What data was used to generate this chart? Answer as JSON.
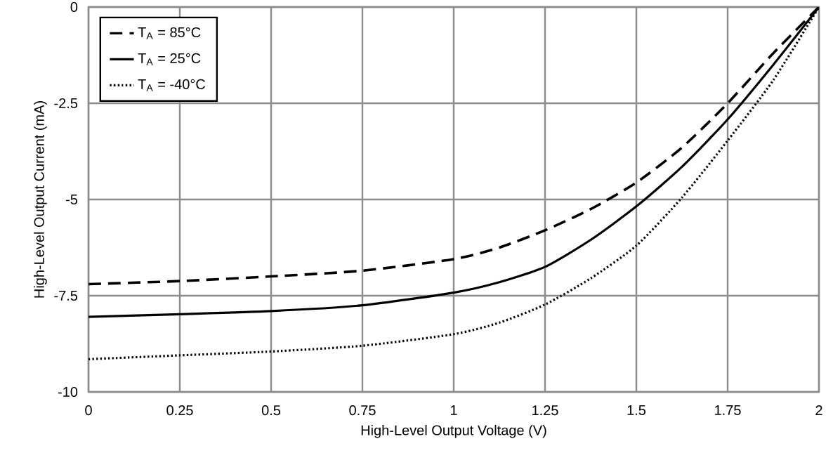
{
  "chart_data": {
    "type": "line",
    "xlabel": "High-Level Output Voltage (V)",
    "ylabel": "High-Level Output Current (mA)",
    "x": [
      0,
      0.25,
      0.5,
      0.75,
      1.0,
      1.125,
      1.25,
      1.375,
      1.5,
      1.625,
      1.75,
      1.875,
      2
    ],
    "series": [
      {
        "name": "T$_{A}$ = 85°C",
        "color": "#000000",
        "line_style": "dashed",
        "values": [
          -7.2,
          -7.12,
          -7.0,
          -6.85,
          -6.55,
          -6.25,
          -5.8,
          -5.25,
          -4.56,
          -3.65,
          -2.5,
          -1.2,
          0
        ]
      },
      {
        "name": "T$_{A}$ = 25°C",
        "color": "#000000",
        "line_style": "solid",
        "values": [
          -8.05,
          -7.98,
          -7.9,
          -7.75,
          -7.42,
          -7.15,
          -6.75,
          -6.05,
          -5.18,
          -4.15,
          -2.92,
          -1.5,
          0
        ]
      },
      {
        "name": "T$_{A}$ = -40°C",
        "color": "#000000",
        "line_style": "dotted",
        "values": [
          -9.15,
          -9.05,
          -8.95,
          -8.8,
          -8.5,
          -8.2,
          -7.73,
          -7.05,
          -6.2,
          -4.95,
          -3.47,
          -1.9,
          0
        ]
      }
    ],
    "xlim": [
      0,
      2
    ],
    "ylim": [
      -10,
      0
    ],
    "xticks": [
      0,
      0.25,
      0.5,
      0.75,
      1,
      1.25,
      1.5,
      1.75,
      2
    ],
    "yticks": [
      0,
      -2.5,
      -5,
      -7.5,
      -10
    ],
    "grid": true,
    "legend": "top left"
  }
}
